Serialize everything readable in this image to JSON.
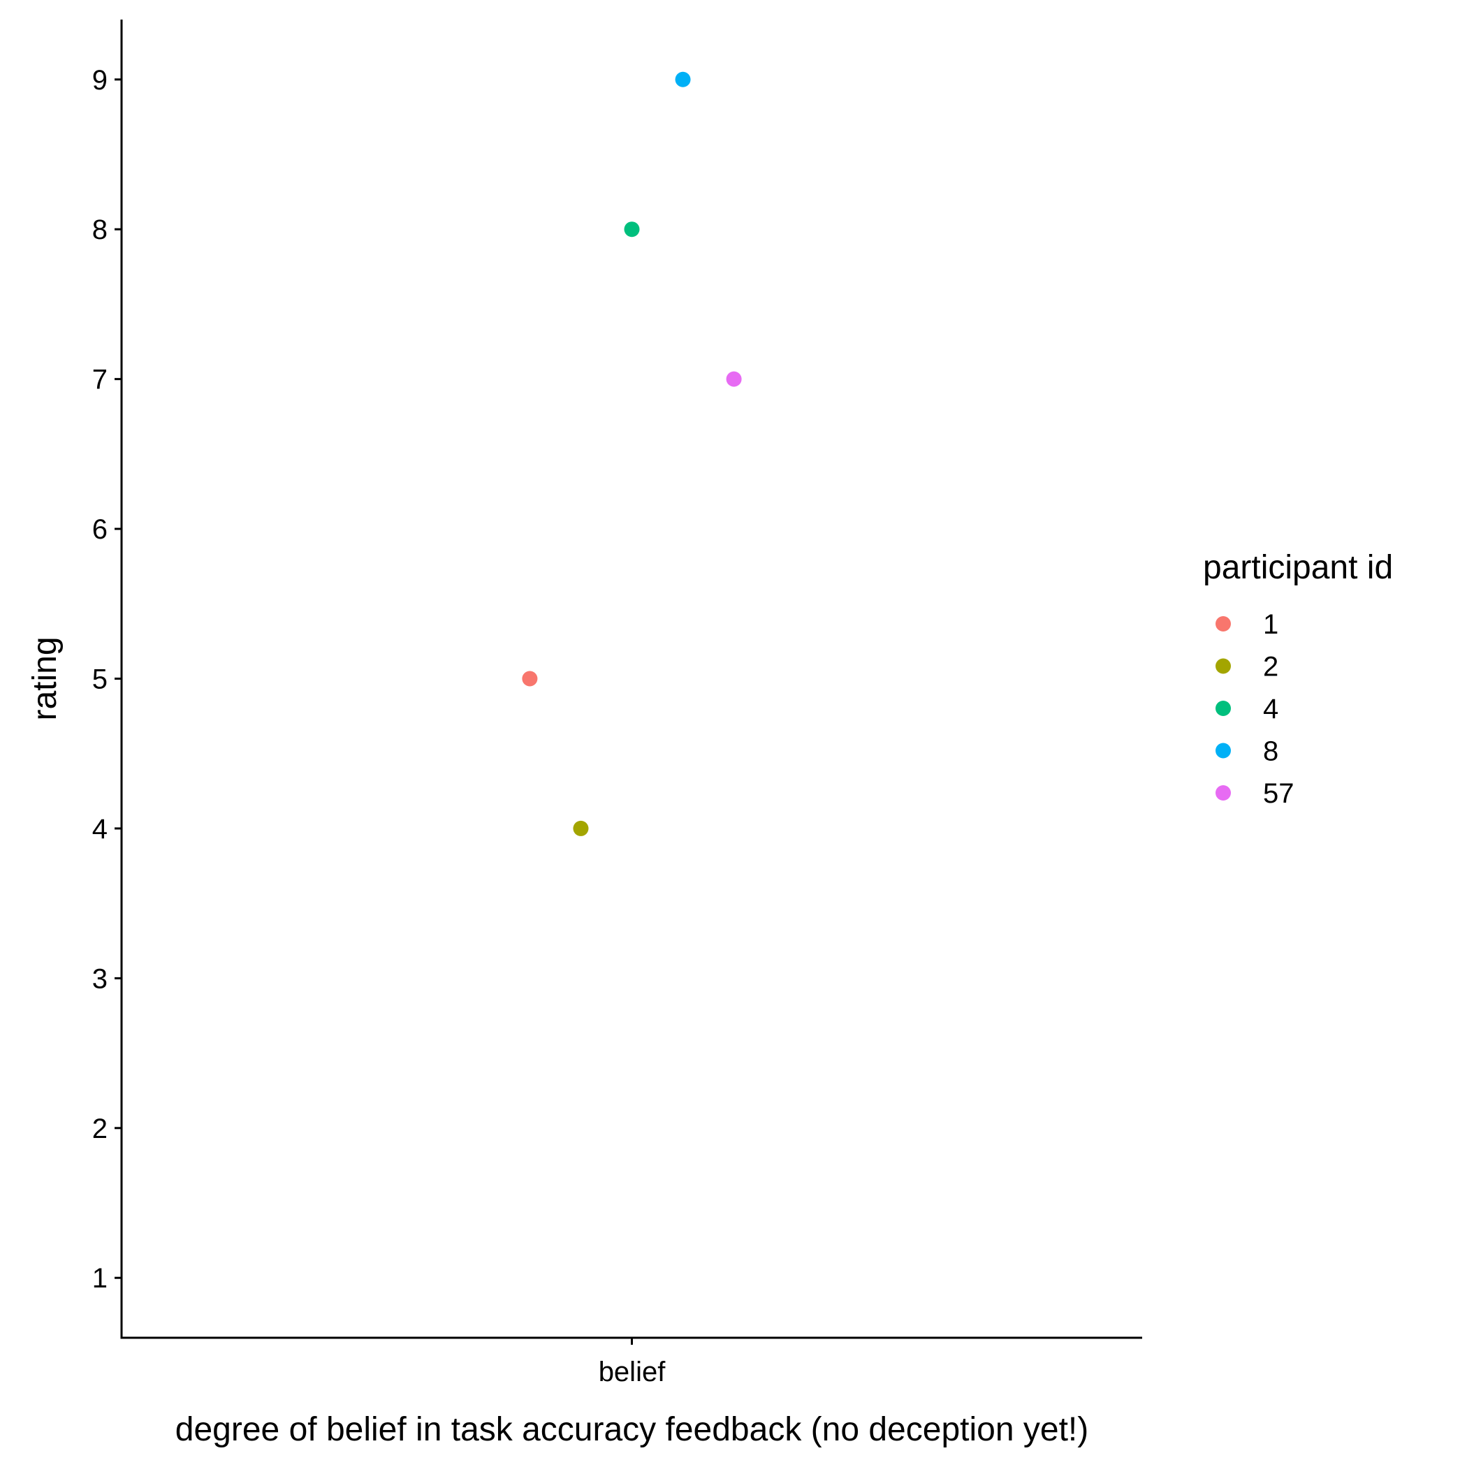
{
  "chart_data": {
    "type": "scatter",
    "xlabel": "degree of belief in task accuracy feedback (no deception yet!)",
    "ylabel": "rating",
    "x_categories": [
      "belief"
    ],
    "ylim": [
      0.6,
      9.4
    ],
    "y_ticks": [
      1,
      2,
      3,
      4,
      5,
      6,
      7,
      8,
      9
    ],
    "grid": false,
    "legend": {
      "title": "participant id",
      "placement": "right"
    },
    "points": [
      {
        "series": "1",
        "x": "belief",
        "x_jitter": -0.2,
        "y": 5,
        "color": "#F8766D"
      },
      {
        "series": "2",
        "x": "belief",
        "x_jitter": -0.1,
        "y": 4,
        "color": "#A3A500"
      },
      {
        "series": "4",
        "x": "belief",
        "x_jitter": 0.0,
        "y": 8,
        "color": "#00BF7D"
      },
      {
        "series": "8",
        "x": "belief",
        "x_jitter": 0.1,
        "y": 9,
        "color": "#00B0F6"
      },
      {
        "series": "57",
        "x": "belief",
        "x_jitter": 0.2,
        "y": 7,
        "color": "#E76BF3"
      }
    ],
    "series": [
      {
        "name": "1",
        "color": "#F8766D"
      },
      {
        "name": "2",
        "color": "#A3A500"
      },
      {
        "name": "4",
        "color": "#00BF7D"
      },
      {
        "name": "8",
        "color": "#00B0F6"
      },
      {
        "name": "57",
        "color": "#E76BF3"
      }
    ]
  }
}
